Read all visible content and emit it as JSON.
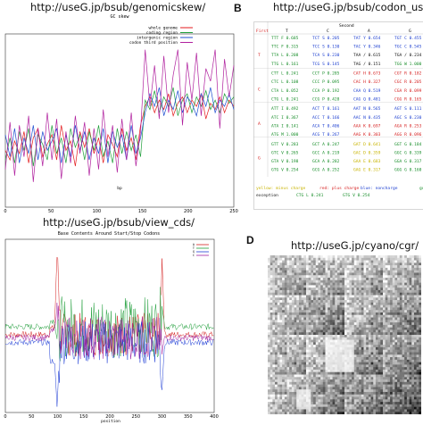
{
  "panelA": {
    "url": "http://useG.jp/bsub/genomicskew/",
    "chart_data": {
      "type": "line",
      "title": "GC skew",
      "xlabel": "bp",
      "ylabel": "",
      "xlim": [
        0,
        250
      ],
      "x_ticks": [
        "0",
        "50",
        "100",
        "150",
        "200",
        "250"
      ],
      "series": [
        {
          "name": "whole genome",
          "color": "#e31a1c",
          "values": [
            -0.02,
            -0.05,
            0.01,
            -0.03,
            0.04,
            -0.06,
            0.02,
            0.05,
            -0.04,
            0.0,
            0.03,
            -0.05,
            0.06,
            -0.02,
            0.01,
            -0.07,
            0.04,
            -0.01,
            0.05,
            -0.03,
            0.02,
            -0.06,
            0.03,
            0.0,
            -0.04,
            0.05,
            -0.02,
            0.02,
            -0.05,
            0.06,
            0.12,
            0.15,
            0.1,
            0.14,
            0.11,
            0.16,
            0.09,
            0.13,
            0.15,
            0.1,
            0.14,
            0.12,
            0.16,
            0.08,
            0.13,
            0.11,
            0.15,
            0.1,
            0.14,
            0.12
          ]
        },
        {
          "name": "coding region",
          "color": "#1f9e3a",
          "values": [
            -0.05,
            0.02,
            -0.06,
            0.04,
            -0.02,
            0.05,
            -0.07,
            0.03,
            0.0,
            -0.05,
            0.06,
            -0.03,
            0.02,
            -0.06,
            0.05,
            -0.01,
            0.03,
            -0.05,
            0.04,
            -0.02,
            0.06,
            -0.04,
            0.01,
            -0.06,
            0.05,
            -0.03,
            0.04,
            -0.02,
            0.03,
            -0.04,
            0.14,
            0.11,
            0.17,
            0.1,
            0.15,
            0.12,
            0.18,
            0.09,
            0.14,
            0.16,
            0.1,
            0.15,
            0.12,
            0.17,
            0.11,
            0.14,
            0.1,
            0.16,
            0.13,
            0.15
          ]
        },
        {
          "name": "intergenic region",
          "color": "#1f4fd1",
          "values": [
            0.03,
            -0.04,
            0.05,
            -0.06,
            0.02,
            -0.03,
            0.06,
            -0.05,
            0.04,
            -0.02,
            0.01,
            0.05,
            -0.06,
            0.03,
            -0.04,
            0.06,
            -0.02,
            0.04,
            -0.05,
            0.02,
            -0.03,
            0.05,
            -0.06,
            0.04,
            -0.01,
            0.03,
            -0.05,
            0.06,
            -0.03,
            0.02,
            0.1,
            0.16,
            0.12,
            0.18,
            0.09,
            0.14,
            0.11,
            0.17,
            0.1,
            0.15,
            0.13,
            0.09,
            0.16,
            0.12,
            0.18,
            0.1,
            0.14,
            0.12,
            0.16,
            0.11
          ]
        },
        {
          "name": "codon third position",
          "color": "#b0209e",
          "values": [
            -0.08,
            0.07,
            -0.1,
            0.06,
            -0.04,
            0.09,
            -0.12,
            0.05,
            -0.07,
            0.1,
            -0.05,
            0.08,
            -0.11,
            0.04,
            -0.06,
            0.09,
            -0.03,
            0.07,
            -0.1,
            0.05,
            -0.08,
            0.11,
            -0.04,
            0.06,
            -0.09,
            0.08,
            -0.05,
            0.1,
            -0.07,
            0.04,
            0.3,
            0.12,
            0.25,
            0.08,
            0.28,
            0.1,
            0.22,
            0.3,
            0.06,
            0.26,
            0.14,
            0.29,
            0.09,
            0.24,
            0.2,
            0.3,
            0.05,
            0.27,
            0.15,
            0.25
          ]
        }
      ]
    }
  },
  "panelB": {
    "label": "B",
    "url": "http://useG.jp/bsub/codon_usag",
    "header_first": "First",
    "header_second": "Second",
    "col_heads": [
      "T",
      "C",
      "A",
      "G"
    ],
    "row_heads": [
      "T",
      "C",
      "A",
      "G"
    ],
    "rows": [
      [
        "TTT F 0.685",
        "TCT S 0.205",
        "TAT Y 0.654",
        "TGT C 0.455"
      ],
      [
        "TTC F 0.315",
        "TCC S 0.130",
        "TAC Y 0.346",
        "TGC C 0.545"
      ],
      [
        "TTA L 0.208",
        "TCA S 0.230",
        "TAA / 0.615",
        "TGA / 0.234"
      ],
      [
        "TTG L 0.161",
        "TCG S 0.145",
        "TAG / 0.151",
        "TGG W 1.000"
      ],
      [
        "CTT L 0.241",
        "CCT P 0.285",
        "CAT H 0.673",
        "CGT R 0.182"
      ],
      [
        "CTC L 0.108",
        "CCC P 0.095",
        "CAC H 0.327",
        "CGC R 0.205"
      ],
      [
        "CTA L 0.052",
        "CCA P 0.192",
        "CAA Q 0.519",
        "CGA R 0.099"
      ],
      [
        "CTG L 0.241",
        "CCG P 0.428",
        "CAG Q 0.481",
        "CGG R 0.165"
      ],
      [
        "ATT I 0.492",
        "ACT T 0.161",
        "AAT N 0.565",
        "AGT S 0.111"
      ],
      [
        "ATC I 0.367",
        "ACC T 0.166",
        "AAC N 0.435",
        "AGC S 0.230"
      ],
      [
        "ATA I 0.141",
        "ACA T 0.406",
        "AAA K 0.697",
        "AGA R 0.253"
      ],
      [
        "ATG M 1.000",
        "ACG T 0.267",
        "AAG K 0.303",
        "AGG R 0.096"
      ],
      [
        "GTT V 0.283",
        "GCT A 0.247",
        "GAT D 0.641",
        "GGT G 0.184"
      ],
      [
        "GTC V 0.265",
        "GCC A 0.219",
        "GAC D 0.359",
        "GGC G 0.339"
      ],
      [
        "GTA V 0.198",
        "GCA A 0.282",
        "GAA E 0.683",
        "GGA G 0.317"
      ],
      [
        "GTG V 0.254",
        "GCG A 0.252",
        "GAG E 0.317",
        "GGG G 0.160"
      ]
    ],
    "legend": [
      "yellow: minus charge",
      "red: plus charge",
      "blue: noncharge",
      "green"
    ],
    "legend2": [
      "exception",
      "CTG L 0.241",
      "GTG V 0.254"
    ],
    "colors": {
      "minus": "#c8b400",
      "plus": "#d61f1f",
      "noncharge": "#1d3fd0",
      "green": "#1a8f2c",
      "stop": "#111111"
    }
  },
  "panelC": {
    "url": "http://useG.jp/bsub/view_cds/",
    "chart_data": {
      "type": "line",
      "title": "Base Contents Around Start/Stop Codons",
      "xlabel": "position",
      "xlim": [
        0,
        400
      ],
      "x_ticks": [
        "0",
        "50",
        "100",
        "150",
        "200",
        "250",
        "300",
        "350",
        "400"
      ],
      "legend": [
        "A",
        "T",
        "G",
        "C"
      ],
      "series_colors": [
        "#d41f1f",
        "#1f9e3a",
        "#1f3ed6",
        "#a020a0"
      ],
      "peaks_at": [
        100,
        300
      ]
    }
  },
  "panelD": {
    "label": "D",
    "url": "http://useG.jp/cyano/cgr/"
  }
}
